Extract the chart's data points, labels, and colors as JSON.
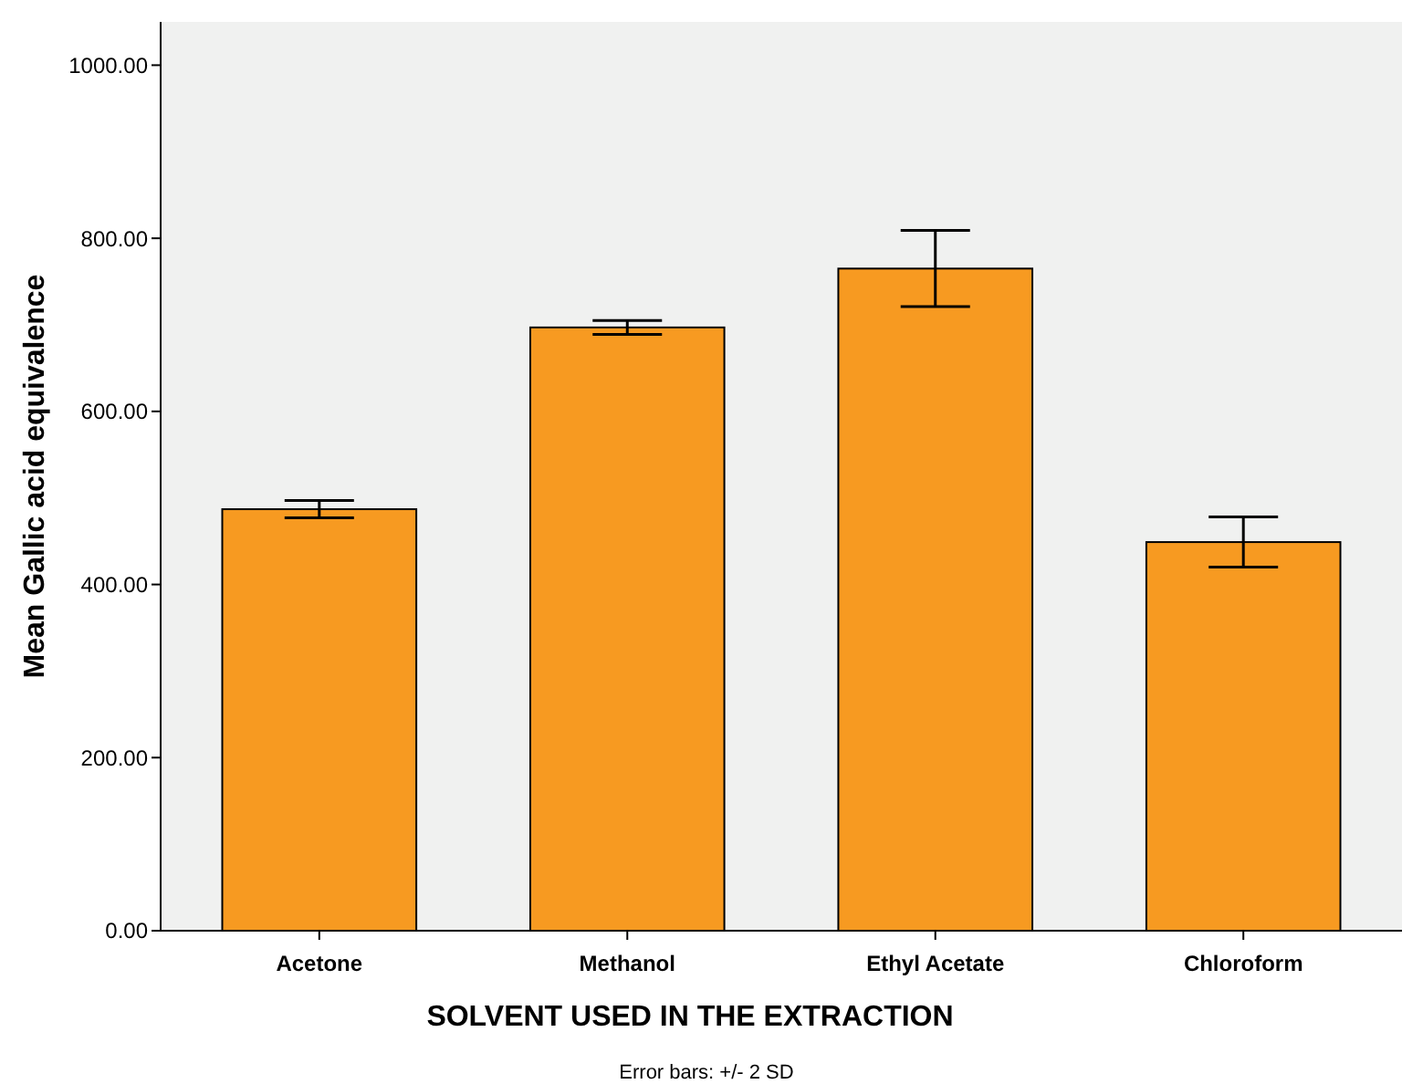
{
  "chart_data": {
    "type": "bar",
    "xlabel": "SOLVENT USED IN THE EXTRACTION",
    "ylabel": "Mean Gallic acid equivalence",
    "categories": [
      "Acetone",
      "Methanol",
      "Ethyl Acetate",
      "Chloroform"
    ],
    "values": [
      487,
      697,
      765,
      449
    ],
    "color": "#f79a21",
    "errors": [
      10,
      8,
      44,
      29
    ],
    "ylim": [
      0,
      1050
    ],
    "yticks": [
      {
        "value": 0,
        "label": "0.00"
      },
      {
        "value": 200,
        "label": "200.00"
      },
      {
        "value": 400,
        "label": "400.00"
      },
      {
        "value": 600,
        "label": "600.00"
      },
      {
        "value": 800,
        "label": "800.00"
      },
      {
        "value": 1000,
        "label": "1000.00"
      }
    ],
    "grid": false,
    "annotations": [
      "Error bars: +/- 2 SD"
    ]
  }
}
